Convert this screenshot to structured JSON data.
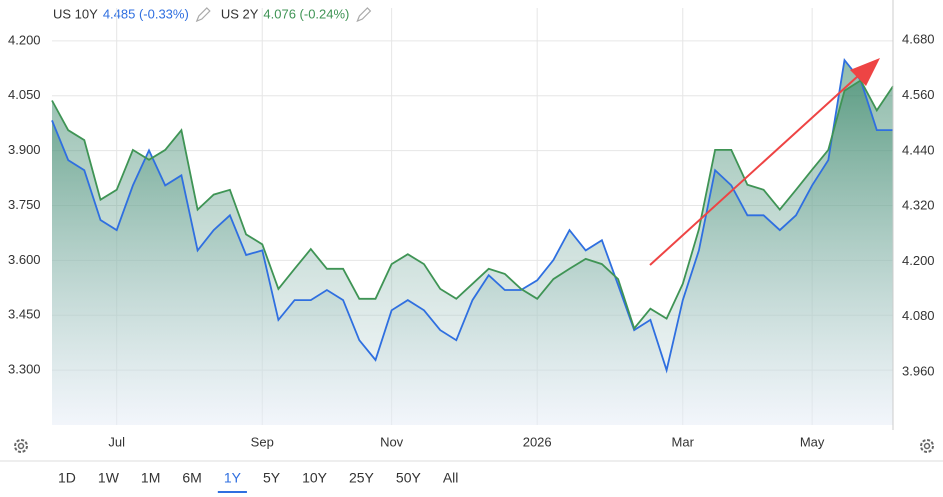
{
  "chart_data": {
    "type": "line",
    "categories": [
      null,
      null,
      null,
      null,
      "Jul",
      null,
      null,
      null,
      null,
      null,
      null,
      null,
      null,
      "Sep",
      null,
      null,
      null,
      null,
      null,
      null,
      null,
      "Nov",
      null,
      null,
      null,
      null,
      null,
      null,
      null,
      null,
      "2026",
      null,
      null,
      null,
      null,
      null,
      null,
      null,
      null,
      "Mar",
      null,
      null,
      null,
      null,
      null,
      null,
      null,
      "May",
      null,
      null,
      null,
      null,
      null
    ],
    "series": [
      {
        "name": "US 10Y",
        "legend_value": "4.485 (-0.33%)",
        "color": "#2f6fe0",
        "axis": "y2",
        "values": [
          4.506,
          4.42,
          4.398,
          4.29,
          4.268,
          4.365,
          4.441,
          4.365,
          4.387,
          4.224,
          4.268,
          4.3,
          4.214,
          4.224,
          4.073,
          4.116,
          4.116,
          4.138,
          4.116,
          4.029,
          3.986,
          4.094,
          4.116,
          4.094,
          4.051,
          4.029,
          4.116,
          4.17,
          4.138,
          4.138,
          4.159,
          4.203,
          4.268,
          4.224,
          4.246,
          4.149,
          4.051,
          4.073,
          3.964,
          4.116,
          4.224,
          4.398,
          4.365,
          4.3,
          4.3,
          4.268,
          4.3,
          4.365,
          4.42,
          4.637,
          4.593,
          4.485,
          4.485
        ]
      },
      {
        "name": "US 2Y",
        "legend_value": "4.076 (-0.24%)",
        "color": "#3f9455",
        "values": [
          4.037,
          3.956,
          3.929,
          3.766,
          3.793,
          3.902,
          3.875,
          3.902,
          3.956,
          3.739,
          3.78,
          3.793,
          3.671,
          3.644,
          3.522,
          3.577,
          3.631,
          3.577,
          3.577,
          3.495,
          3.495,
          3.59,
          3.617,
          3.59,
          3.522,
          3.495,
          3.536,
          3.577,
          3.563,
          3.522,
          3.495,
          3.549,
          3.577,
          3.604,
          3.59,
          3.549,
          3.414,
          3.468,
          3.441,
          3.536,
          3.685,
          3.902,
          3.902,
          3.807,
          3.793,
          3.739,
          3.793,
          3.848,
          3.902,
          4.064,
          4.092,
          4.01,
          4.076
        ]
      }
    ],
    "ylim": [
      3.15,
      4.29
    ],
    "yticks": [
      {
        "value": 3.3,
        "label": "3.300"
      },
      {
        "value": 3.45,
        "label": "3.450"
      },
      {
        "value": 3.6,
        "label": "3.600"
      },
      {
        "value": 3.75,
        "label": "3.750"
      },
      {
        "value": 3.9,
        "label": "3.900"
      },
      {
        "value": 4.05,
        "label": "4.050"
      },
      {
        "value": 4.2,
        "label": "4.200"
      }
    ],
    "y2lim": [
      3.845,
      4.75
    ],
    "y2ticks": [
      {
        "value": 3.96,
        "label": "3.960"
      },
      {
        "value": 4.08,
        "label": "4.080"
      },
      {
        "value": 4.2,
        "label": "4.200"
      },
      {
        "value": 4.32,
        "label": "4.320"
      },
      {
        "value": 4.44,
        "label": "4.440"
      },
      {
        "value": 4.56,
        "label": "4.560"
      },
      {
        "value": 4.68,
        "label": "4.680"
      }
    ],
    "grid": true
  },
  "range_buttons": {
    "items": [
      "1D",
      "1W",
      "1M",
      "6M",
      "1Y",
      "5Y",
      "10Y",
      "25Y",
      "50Y",
      "All"
    ],
    "selected": "1Y"
  }
}
